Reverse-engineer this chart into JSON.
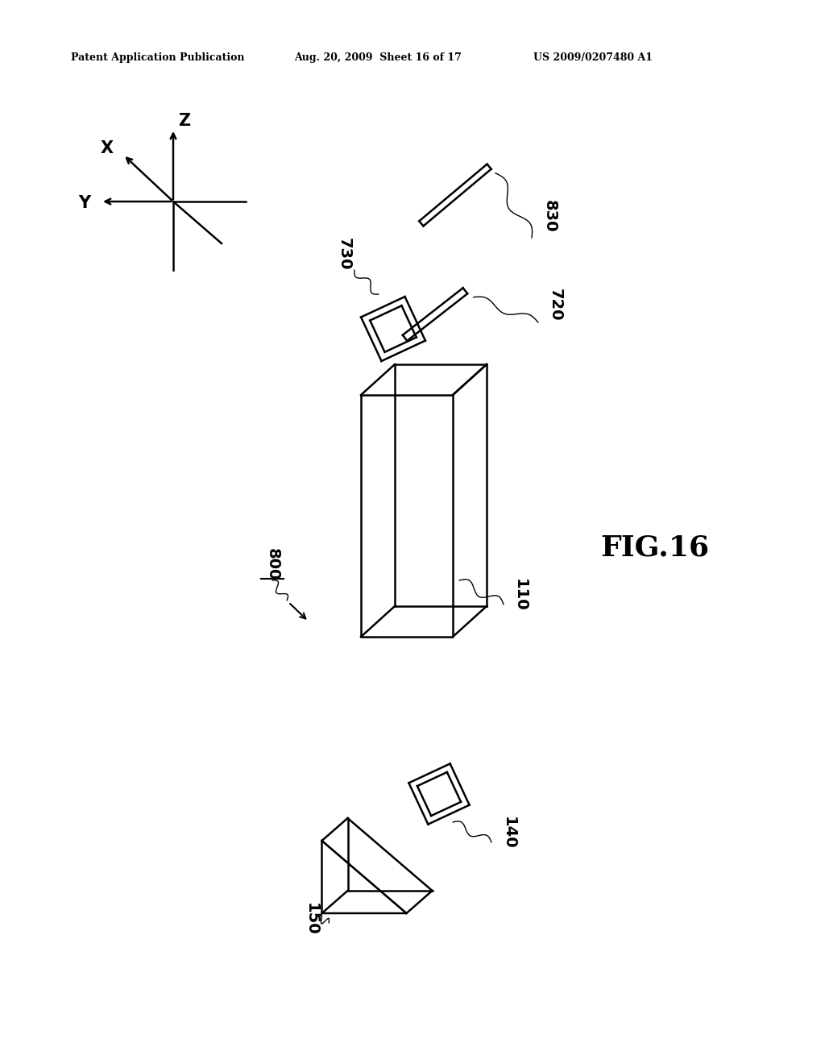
{
  "bg_color": "#ffffff",
  "text_color": "#000000",
  "header_left": "Patent Application Publication",
  "header_mid": "Aug. 20, 2009  Sheet 16 of 17",
  "header_right": "US 2009/0207480 A1",
  "fig_label": "FIG.16",
  "label_800": "800",
  "label_110": "110",
  "label_730": "730",
  "label_720": "720",
  "label_830": "830",
  "label_140": "140",
  "label_150": "150",
  "lw": 1.8
}
